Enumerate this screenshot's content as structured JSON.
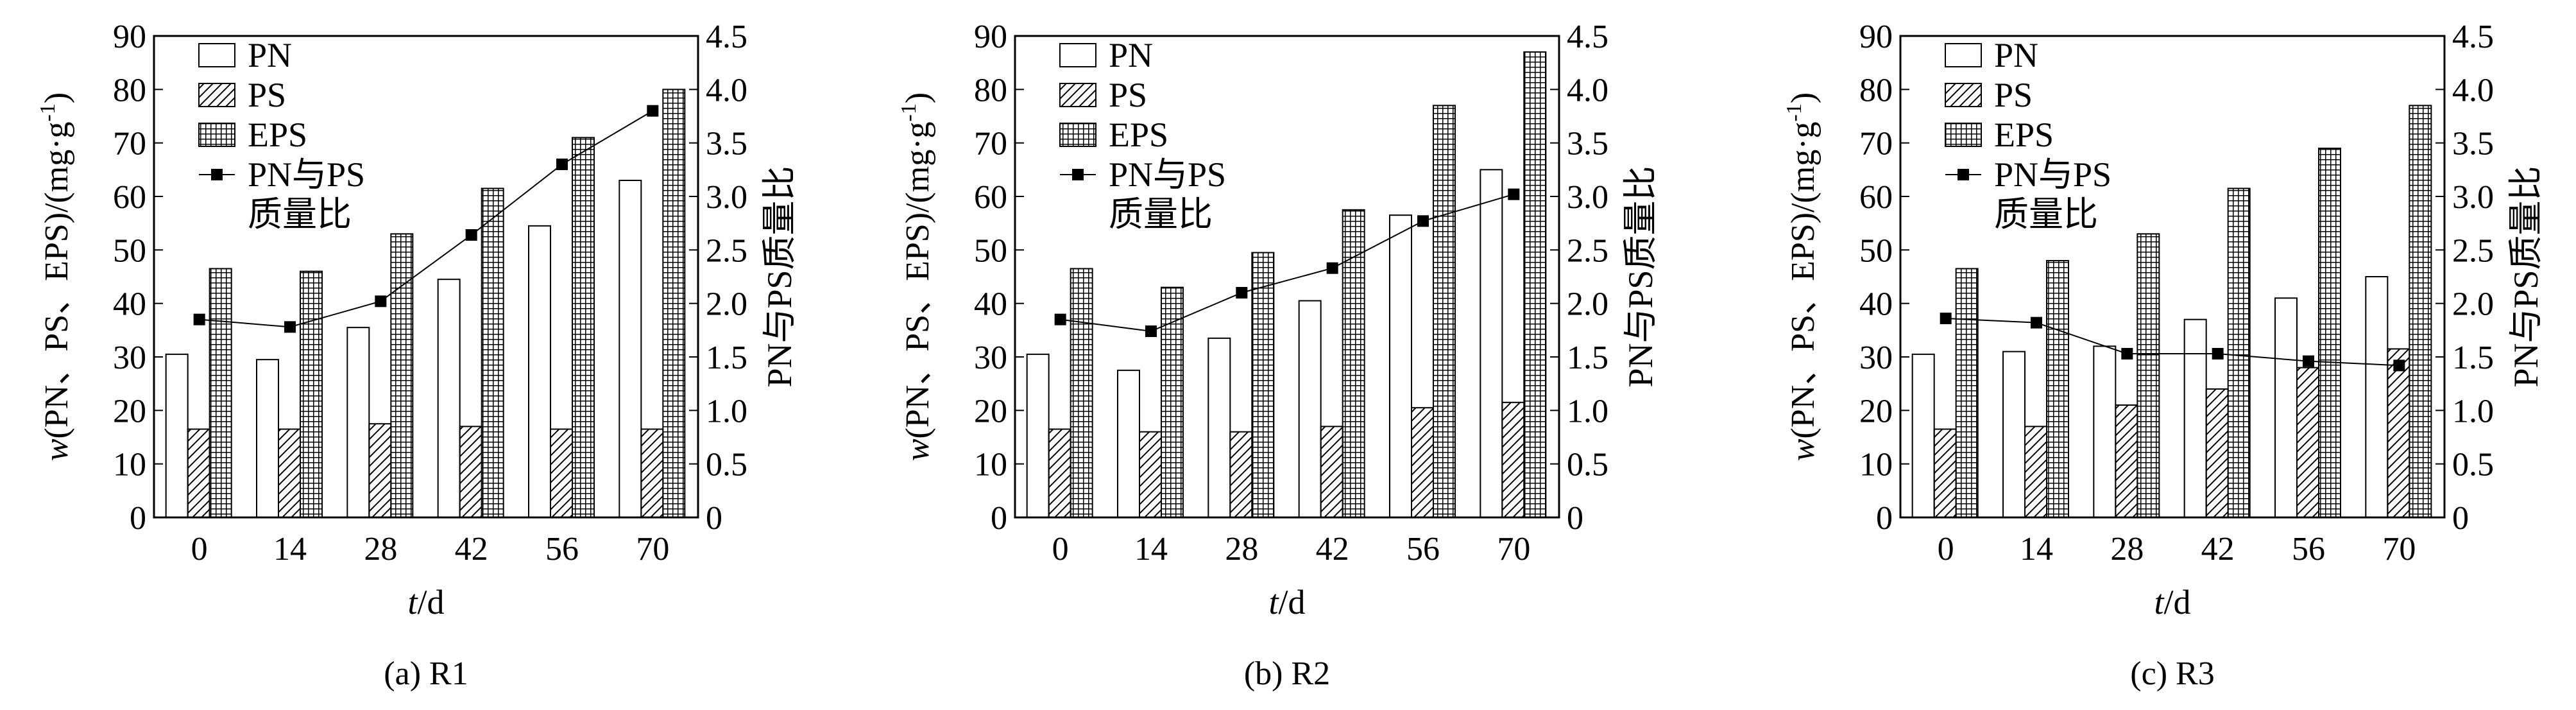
{
  "chart_data": [
    {
      "type": "bar",
      "caption": "(a) R1",
      "categories": [
        "0",
        "14",
        "28",
        "42",
        "56",
        "70"
      ],
      "xlabel_italic": "t",
      "xlabel_rest": "/d",
      "ylabel_italic": "w",
      "ylabel_rest": "(PN、PS、EPS)/(mg·g",
      "ylabel_sup": "-1",
      "ylabel_close": ")",
      "y2label": "PN与PS质量比",
      "ylim": [
        0,
        90
      ],
      "yticks": [
        "0",
        "10",
        "20",
        "30",
        "40",
        "50",
        "60",
        "70",
        "80",
        "90"
      ],
      "y2lim": [
        0,
        4.5
      ],
      "y2ticks": [
        "0",
        "0.5",
        "1.0",
        "1.5",
        "2.0",
        "2.5",
        "3.0",
        "3.5",
        "4.0",
        "4.5"
      ],
      "series": [
        {
          "name": "PN",
          "type": "bar",
          "values": [
            30.5,
            29.5,
            35.5,
            44.5,
            54.5,
            63.0
          ]
        },
        {
          "name": "PS",
          "type": "bar",
          "values": [
            16.5,
            16.5,
            17.5,
            17.0,
            16.5,
            16.5
          ]
        },
        {
          "name": "EPS",
          "type": "bar",
          "values": [
            46.5,
            46.0,
            53.0,
            61.5,
            71.0,
            80.0
          ]
        },
        {
          "name": "PN与PS质量比",
          "type": "line",
          "axis": "right",
          "values": [
            1.85,
            1.78,
            2.02,
            2.64,
            3.3,
            3.8
          ]
        }
      ],
      "legend": {
        "position": "top-left",
        "entries": [
          "PN",
          "PS",
          "EPS",
          "PN与PS",
          "质量比"
        ]
      }
    },
    {
      "type": "bar",
      "caption": "(b) R2",
      "categories": [
        "0",
        "14",
        "28",
        "42",
        "56",
        "70"
      ],
      "xlabel_italic": "t",
      "xlabel_rest": "/d",
      "ylabel_italic": "w",
      "ylabel_rest": "(PN、PS、EPS)/(mg·g",
      "ylabel_sup": "-1",
      "ylabel_close": ")",
      "y2label": "PN与PS质量比",
      "ylim": [
        0,
        90
      ],
      "yticks": [
        "0",
        "10",
        "20",
        "30",
        "40",
        "50",
        "60",
        "70",
        "80",
        "90"
      ],
      "y2lim": [
        0,
        4.5
      ],
      "y2ticks": [
        "0",
        "0.5",
        "1.0",
        "1.5",
        "2.0",
        "2.5",
        "3.0",
        "3.5",
        "4.0",
        "4.5"
      ],
      "series": [
        {
          "name": "PN",
          "type": "bar",
          "values": [
            30.5,
            27.5,
            33.5,
            40.5,
            56.5,
            65.0
          ]
        },
        {
          "name": "PS",
          "type": "bar",
          "values": [
            16.5,
            16.0,
            16.0,
            17.0,
            20.5,
            21.5
          ]
        },
        {
          "name": "EPS",
          "type": "bar",
          "values": [
            46.5,
            43.0,
            49.5,
            57.5,
            77.0,
            87.0
          ]
        },
        {
          "name": "PN与PS质量比",
          "type": "line",
          "axis": "right",
          "values": [
            1.85,
            1.74,
            2.1,
            2.33,
            2.77,
            3.02
          ]
        }
      ],
      "legend": {
        "position": "top-left",
        "entries": [
          "PN",
          "PS",
          "EPS",
          "PN与PS",
          "质量比"
        ]
      }
    },
    {
      "type": "bar",
      "caption": "(c) R3",
      "categories": [
        "0",
        "14",
        "28",
        "42",
        "56",
        "70"
      ],
      "xlabel_italic": "t",
      "xlabel_rest": "/d",
      "ylabel_italic": "w",
      "ylabel_rest": "(PN、PS、EPS)/(mg·g",
      "ylabel_sup": "-1",
      "ylabel_close": ")",
      "y2label": "PN与PS质量比",
      "ylim": [
        0,
        90
      ],
      "yticks": [
        "0",
        "10",
        "20",
        "30",
        "40",
        "50",
        "60",
        "70",
        "80",
        "90"
      ],
      "y2lim": [
        0,
        4.5
      ],
      "y2ticks": [
        "0",
        "0.5",
        "1.0",
        "1.5",
        "2.0",
        "2.5",
        "3.0",
        "3.5",
        "4.0",
        "4.5"
      ],
      "series": [
        {
          "name": "PN",
          "type": "bar",
          "values": [
            30.5,
            31.0,
            32.0,
            37.0,
            41.0,
            45.0
          ]
        },
        {
          "name": "PS",
          "type": "bar",
          "values": [
            16.5,
            17.0,
            21.0,
            24.0,
            28.0,
            31.5
          ]
        },
        {
          "name": "EPS",
          "type": "bar",
          "values": [
            46.5,
            48.0,
            53.0,
            61.5,
            69.0,
            77.0
          ]
        },
        {
          "name": "PN与PS质量比",
          "type": "line",
          "axis": "right",
          "values": [
            1.86,
            1.82,
            1.53,
            1.53,
            1.46,
            1.42
          ]
        }
      ],
      "legend": {
        "position": "top-left",
        "entries": [
          "PN",
          "PS",
          "EPS",
          "PN与PS",
          "质量比"
        ]
      }
    }
  ]
}
